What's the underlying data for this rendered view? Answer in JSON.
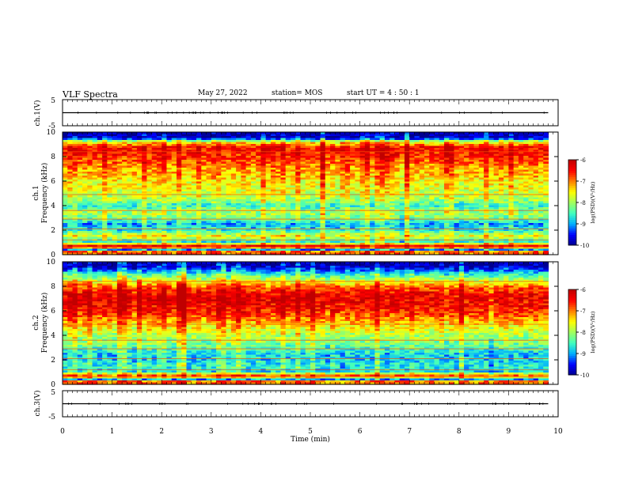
{
  "header": {
    "title": "VLF Spectra",
    "date": "May 27, 2022",
    "station": "station= MOS",
    "start": "start  UT =   4 : 50 : 1"
  },
  "colors": {
    "colormap": [
      "#00008f",
      "#0000ff",
      "#00afff",
      "#40ffbf",
      "#a0ff60",
      "#ffff00",
      "#ff8000",
      "#ff0000",
      "#c00000",
      "#ffffff"
    ],
    "frame": "#000000"
  },
  "chart_data": [
    {
      "type": "line",
      "name": "ch1-waveform",
      "ylabel": "ch.1(V)",
      "ylim": [
        -5,
        5
      ],
      "yticks": [
        "5",
        "-5"
      ],
      "x": [
        0,
        9.8
      ],
      "values": [
        0,
        0
      ],
      "xlim": [
        0,
        10
      ]
    },
    {
      "type": "heatmap",
      "name": "ch1-spectrogram",
      "ylabel_top": "ch.1",
      "ylabel": "Frequency (kHz)",
      "ylim": [
        0,
        10
      ],
      "yticks": [
        "0",
        "2",
        "4",
        "6",
        "8",
        "10"
      ],
      "xlim": [
        0,
        10
      ],
      "data_end_min": 9.8,
      "colorbar": {
        "label": "log(PSD)(V²/Hz)",
        "ticks": [
          "-6",
          "-7",
          "-8",
          "-9",
          "-10"
        ],
        "range": [
          -10,
          -6
        ]
      },
      "profile": [
        [
          0.0,
          -7.0
        ],
        [
          0.3,
          -7.0
        ],
        [
          0.45,
          -10.0
        ],
        [
          0.6,
          -6.2
        ],
        [
          0.8,
          -6.8
        ],
        [
          1.0,
          -8.8
        ],
        [
          1.5,
          -7.6
        ],
        [
          2.0,
          -8.7
        ],
        [
          2.5,
          -9.0
        ],
        [
          3.0,
          -8.2
        ],
        [
          3.5,
          -8.0
        ],
        [
          4.0,
          -8.6
        ],
        [
          4.5,
          -8.0
        ],
        [
          5.0,
          -7.8
        ],
        [
          5.5,
          -7.6
        ],
        [
          6.0,
          -7.6
        ],
        [
          6.5,
          -7.3
        ],
        [
          7.0,
          -7.2
        ],
        [
          7.5,
          -6.9
        ],
        [
          8.0,
          -6.7
        ],
        [
          8.5,
          -6.5
        ],
        [
          8.8,
          -6.6
        ],
        [
          9.2,
          -7.6
        ],
        [
          9.5,
          -9.8
        ],
        [
          10.0,
          -10.0
        ]
      ]
    },
    {
      "type": "heatmap",
      "name": "ch2-spectrogram",
      "ylabel_top": "ch.2",
      "ylabel": "Frequency (kHz)",
      "ylim": [
        0,
        10
      ],
      "yticks": [
        "0",
        "2",
        "4",
        "6",
        "8",
        "10"
      ],
      "xlim": [
        0,
        10
      ],
      "data_end_min": 9.8,
      "colorbar": {
        "label": "log(PSD)(V²/Hz)",
        "ticks": [
          "-6",
          "-7",
          "-8",
          "-9",
          "-10"
        ],
        "range": [
          -10,
          -6
        ]
      },
      "profile": [
        [
          0.0,
          -7.0
        ],
        [
          0.3,
          -7.0
        ],
        [
          0.45,
          -10.0
        ],
        [
          0.6,
          -6.8
        ],
        [
          0.8,
          -7.0
        ],
        [
          1.0,
          -8.8
        ],
        [
          1.5,
          -8.6
        ],
        [
          2.0,
          -8.8
        ],
        [
          2.5,
          -8.8
        ],
        [
          3.0,
          -8.4
        ],
        [
          3.5,
          -8.1
        ],
        [
          4.0,
          -7.9
        ],
        [
          4.5,
          -7.6
        ],
        [
          5.0,
          -7.3
        ],
        [
          5.5,
          -6.9
        ],
        [
          6.0,
          -6.6
        ],
        [
          6.5,
          -6.4
        ],
        [
          7.0,
          -6.3
        ],
        [
          7.5,
          -6.5
        ],
        [
          8.0,
          -7.0
        ],
        [
          8.5,
          -7.8
        ],
        [
          9.0,
          -8.6
        ],
        [
          9.5,
          -9.6
        ],
        [
          10.0,
          -10.0
        ]
      ]
    },
    {
      "type": "line",
      "name": "ch3-waveform",
      "ylabel": "ch.3(V)",
      "ylim": [
        -5,
        5
      ],
      "yticks": [
        "5",
        "-5"
      ],
      "x": [
        0,
        9.8
      ],
      "values": [
        0,
        0
      ],
      "xlim": [
        0,
        10
      ],
      "xlabel": "Time (min)",
      "xticks": [
        "0",
        "1",
        "2",
        "3",
        "4",
        "5",
        "6",
        "7",
        "8",
        "9",
        "10"
      ]
    }
  ]
}
